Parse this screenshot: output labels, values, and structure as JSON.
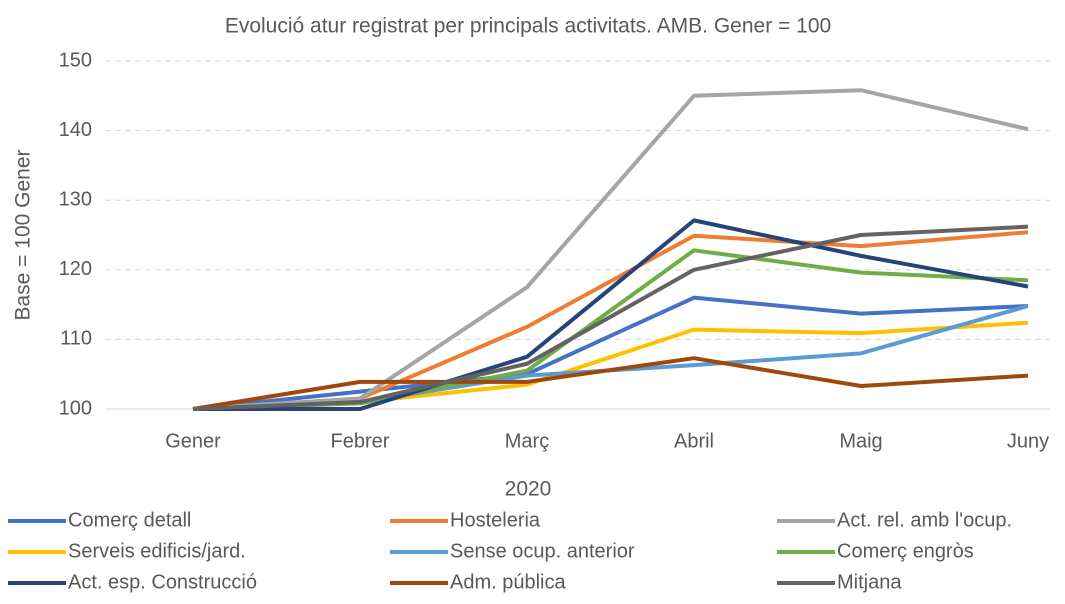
{
  "chart_data": {
    "type": "line",
    "title": "Evolució atur registrat per principals activitats. AMB. Gener = 100",
    "x_label": "2020",
    "y_label": "Base = 100 Gener",
    "categories": [
      "Gener",
      "Febrer",
      "Març",
      "Abril",
      "Maig",
      "Juny"
    ],
    "series": [
      {
        "name": "Comerç detall",
        "color": "#4472c4",
        "values": [
          100,
          102.5,
          105,
          116,
          113.7,
          114.8
        ]
      },
      {
        "name": "Hosteleria",
        "color": "#ed7d31",
        "values": [
          100,
          101.5,
          111.8,
          124.9,
          123.4,
          125.4
        ]
      },
      {
        "name": "Act. rel. amb l'ocup.",
        "color": "#a5a5a5",
        "values": [
          100,
          101.5,
          117.5,
          145,
          145.8,
          140.2
        ]
      },
      {
        "name": "Serveis edificis/jard.",
        "color": "#ffc000",
        "values": [
          100,
          101,
          103.5,
          111.4,
          110.9,
          112.4
        ]
      },
      {
        "name": "Sense ocup. anterior",
        "color": "#5b9bd5",
        "values": [
          100,
          101,
          104.8,
          106.3,
          108,
          114.8
        ]
      },
      {
        "name": "Comerç engròs",
        "color": "#70ad47",
        "values": [
          100,
          100.8,
          105.5,
          122.8,
          119.6,
          118.5
        ]
      },
      {
        "name": "Act. esp. Construcció",
        "color": "#264478",
        "values": [
          100,
          100,
          107.5,
          127.1,
          122,
          117.6
        ]
      },
      {
        "name": "Adm. pública",
        "color": "#9e480e",
        "values": [
          100,
          103.9,
          103.9,
          107.3,
          103.3,
          104.8
        ]
      },
      {
        "name": "Mitjana",
        "color": "#636363",
        "values": [
          100,
          101,
          106.5,
          120,
          125,
          126.2
        ]
      }
    ],
    "ylim": [
      100,
      150
    ],
    "yticks": [
      100,
      110,
      120,
      130,
      140,
      150
    ],
    "grid": true,
    "legend": "bottom"
  }
}
